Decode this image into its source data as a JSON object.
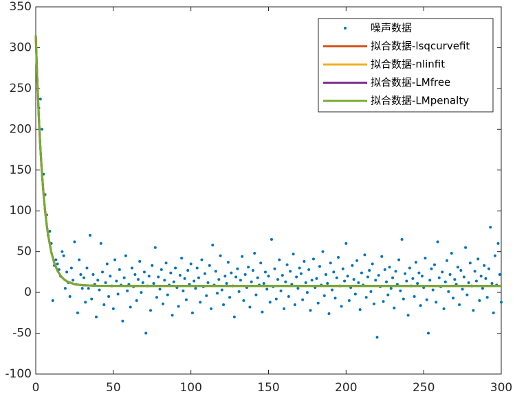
{
  "chart_data": {
    "type": "scatter",
    "xlim": [
      0,
      300
    ],
    "xticks": [
      0,
      50,
      100,
      150,
      200,
      250,
      300
    ],
    "ylim": [
      -100,
      350
    ],
    "yticks": [
      -100,
      -50,
      0,
      50,
      100,
      150,
      200,
      250,
      300,
      350
    ],
    "legend": "upper right",
    "series": [
      {
        "name": "噪声数据",
        "type": "scatter",
        "color": "#0072BD",
        "x": [
          1,
          2,
          3,
          4,
          5,
          6,
          7,
          8,
          9,
          10,
          11,
          12,
          13,
          14,
          15,
          16,
          17,
          18,
          19,
          20,
          21,
          22,
          23,
          24,
          25,
          26,
          27,
          28,
          29,
          30,
          31,
          32,
          33,
          34,
          35,
          36,
          37,
          38,
          39,
          40,
          41,
          42,
          43,
          44,
          45,
          46,
          47,
          48,
          49,
          50,
          51,
          52,
          53,
          54,
          55,
          56,
          57,
          58,
          59,
          60,
          61,
          62,
          63,
          64,
          65,
          66,
          67,
          68,
          69,
          70,
          71,
          72,
          73,
          74,
          75,
          76,
          77,
          78,
          79,
          80,
          81,
          82,
          83,
          84,
          85,
          86,
          87,
          88,
          89,
          90,
          91,
          92,
          93,
          94,
          95,
          96,
          97,
          98,
          99,
          100,
          101,
          102,
          103,
          104,
          105,
          106,
          107,
          108,
          109,
          110,
          111,
          112,
          113,
          114,
          115,
          116,
          117,
          118,
          119,
          120,
          121,
          122,
          123,
          124,
          125,
          126,
          127,
          128,
          129,
          130,
          131,
          132,
          133,
          134,
          135,
          136,
          137,
          138,
          139,
          140,
          141,
          142,
          143,
          144,
          145,
          146,
          147,
          148,
          149,
          150,
          151,
          152,
          153,
          154,
          155,
          156,
          157,
          158,
          159,
          160,
          161,
          162,
          163,
          164,
          165,
          166,
          167,
          168,
          169,
          170,
          171,
          172,
          173,
          174,
          175,
          176,
          177,
          178,
          179,
          180,
          181,
          182,
          183,
          184,
          185,
          186,
          187,
          188,
          189,
          190,
          191,
          192,
          193,
          194,
          195,
          196,
          197,
          198,
          199,
          200,
          201,
          202,
          203,
          204,
          205,
          206,
          207,
          208,
          209,
          210,
          211,
          212,
          213,
          214,
          215,
          216,
          217,
          218,
          219,
          220,
          221,
          222,
          223,
          224,
          225,
          226,
          227,
          228,
          229,
          230,
          231,
          232,
          233,
          234,
          235,
          236,
          237,
          238,
          239,
          240,
          241,
          242,
          243,
          244,
          245,
          246,
          247,
          248,
          249,
          250,
          251,
          252,
          253,
          254,
          255,
          256,
          257,
          258,
          259,
          260,
          261,
          262,
          263,
          264,
          265,
          266,
          267,
          268,
          269,
          270,
          271,
          272,
          273,
          274,
          275,
          276,
          277,
          278,
          279,
          280,
          281,
          282,
          283,
          284,
          285,
          286,
          287,
          288,
          289,
          290,
          291,
          292,
          293,
          294,
          295,
          296,
          297,
          298,
          299,
          300
        ],
        "values": [
          260,
          226,
          237,
          200,
          145,
          120,
          95,
          70,
          75,
          60,
          -10,
          33,
          40,
          35,
          28,
          20,
          50,
          45,
          5,
          25,
          12,
          -5,
          30,
          15,
          62,
          10,
          -25,
          40,
          22,
          5,
          18,
          -12,
          30,
          5,
          70,
          -8,
          22,
          10,
          -30,
          15,
          3,
          60,
          25,
          -15,
          12,
          35,
          -5,
          20,
          8,
          -20,
          40,
          14,
          -2,
          28,
          9,
          -35,
          18,
          45,
          2,
          10,
          -18,
          30,
          7,
          22,
          -10,
          16,
          38,
          0,
          12,
          25,
          -50,
          8,
          20,
          -22,
          33,
          11,
          55,
          -6,
          19,
          4,
          28,
          -14,
          15,
          36,
          -3,
          9,
          24,
          -28,
          13,
          30,
          6,
          -17,
          21,
          42,
          2,
          17,
          -9,
          27,
          10,
          35,
          -25,
          14,
          5,
          30,
          18,
          -12,
          40,
          7,
          23,
          -4,
          12,
          33,
          -20,
          58,
          9,
          26,
          -1,
          16,
          45,
          3,
          -15,
          20,
          11,
          37,
          -6,
          24,
          8,
          -30,
          19,
          29,
          1,
          15,
          44,
          -10,
          22,
          6,
          31,
          -18,
          13,
          27,
          48,
          -3,
          18,
          9,
          36,
          -24,
          11,
          25,
          4,
          20,
          -12,
          65,
          7,
          29,
          -8,
          16,
          40,
          2,
          21,
          -20,
          13,
          34,
          -5,
          26,
          10,
          47,
          -15,
          19,
          5,
          30,
          23,
          -9,
          38,
          12,
          0,
          28,
          -22,
          15,
          41,
          6,
          17,
          -13,
          32,
          9,
          50,
          -4,
          22,
          11,
          -26,
          36,
          3,
          25,
          -7,
          18,
          43,
          8,
          -17,
          29,
          14,
          60,
          20,
          -10,
          6,
          33,
          16,
          -2,
          39,
          12,
          -21,
          24,
          9,
          46,
          -6,
          19,
          27,
          1,
          35,
          -14,
          15,
          -55,
          21,
          7,
          44,
          -11,
          28,
          13,
          -3,
          31,
          5,
          18,
          -19,
          26,
          10,
          40,
          2,
          65,
          -8,
          23,
          14,
          -28,
          30,
          8,
          17,
          -5,
          37,
          11,
          24,
          -16,
          20,
          6,
          42,
          -9,
          -50,
          15,
          29,
          3,
          34,
          -12,
          62,
          18,
          7,
          25,
          -20,
          13,
          39,
          1,
          22,
          48,
          -7,
          16,
          10,
          31,
          -15,
          27,
          4,
          19,
          55,
          -3,
          12,
          36,
          8,
          -22,
          26,
          14,
          41,
          -10,
          20,
          5,
          33,
          17,
          -6,
          29,
          80,
          11,
          -25,
          45,
          9,
          60,
          22,
          -12
        ]
      },
      {
        "name": "拟合数据-lsqcurvefit",
        "type": "line",
        "color": "#D95319",
        "x": [
          0,
          1,
          2,
          3,
          4,
          5,
          6,
          7,
          8,
          10,
          12,
          14,
          16,
          18,
          20,
          25,
          30,
          40,
          60,
          100,
          150,
          200,
          250,
          300
        ],
        "values": [
          315,
          259.3,
          213.8,
          176.5,
          145.9,
          120.9,
          100.5,
          83.7,
          70,
          49.5,
          35.8,
          26.7,
          20.5,
          16.4,
          13.6,
          10.1,
          8.8,
          8.1,
          8,
          8,
          8,
          8,
          8,
          8
        ]
      },
      {
        "name": "拟合数据-nlinfit",
        "type": "line",
        "color": "#EDB120",
        "x": [
          0,
          1,
          2,
          3,
          4,
          5,
          6,
          7,
          8,
          10,
          12,
          14,
          16,
          18,
          20,
          25,
          30,
          40,
          60,
          100,
          150,
          200,
          250,
          300
        ],
        "values": [
          315,
          259.3,
          213.8,
          176.5,
          145.9,
          120.9,
          100.5,
          83.7,
          70,
          49.5,
          35.8,
          26.7,
          20.5,
          16.4,
          13.6,
          10.1,
          8.8,
          8.1,
          8,
          8,
          8,
          8,
          8,
          8
        ]
      },
      {
        "name": "拟合数据-LMfree",
        "type": "line",
        "color": "#7E2F8E",
        "x": [
          0,
          1,
          2,
          3,
          4,
          5,
          6,
          7,
          8,
          10,
          12,
          14,
          16,
          18,
          20,
          25,
          30,
          40,
          60,
          100,
          150,
          200,
          250,
          300
        ],
        "values": [
          315,
          259.3,
          213.8,
          176.5,
          145.9,
          120.9,
          100.5,
          83.7,
          70,
          49.5,
          35.8,
          26.7,
          20.5,
          16.4,
          13.6,
          10.1,
          8.8,
          8.1,
          8,
          8,
          8,
          8,
          8,
          8
        ]
      },
      {
        "name": "拟合数据-LMpenalty",
        "type": "line",
        "color": "#77AC30",
        "x": [
          0,
          1,
          2,
          3,
          4,
          5,
          6,
          7,
          8,
          10,
          12,
          14,
          16,
          18,
          20,
          25,
          30,
          40,
          60,
          100,
          150,
          200,
          250,
          300
        ],
        "values": [
          315,
          259.3,
          213.8,
          176.5,
          145.9,
          120.9,
          100.5,
          83.7,
          70,
          49.5,
          35.8,
          26.7,
          20.5,
          16.4,
          13.6,
          10.1,
          8.8,
          8.1,
          8,
          8,
          8,
          8,
          8,
          8
        ]
      }
    ]
  }
}
